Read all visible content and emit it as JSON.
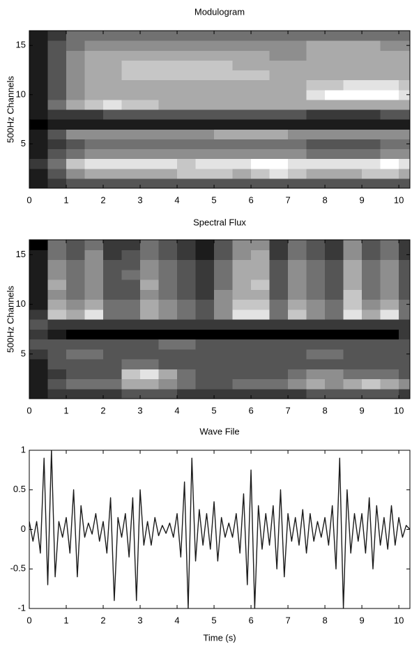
{
  "chart_data": [
    {
      "type": "heatmap",
      "title": "Modulogram",
      "ylabel": "500Hz Channels",
      "xbins": [
        0,
        0.5,
        1,
        1.5,
        2,
        2.5,
        3,
        3.5,
        4,
        4.5,
        5,
        5.5,
        6,
        6.5,
        7,
        7.5,
        8,
        8.5,
        9,
        9.5,
        10,
        10.3
      ],
      "y": [
        1,
        2,
        3,
        4,
        5,
        6,
        7,
        8,
        9,
        10,
        11,
        12,
        13,
        14,
        15,
        16
      ],
      "values": [
        [
          1,
          2,
          3,
          3,
          3,
          3,
          3,
          3,
          3,
          3,
          3,
          3,
          3,
          3,
          3,
          3,
          3,
          3,
          3,
          3,
          3
        ],
        [
          1,
          3,
          5,
          6,
          6,
          6,
          6,
          6,
          7,
          7,
          7,
          6,
          7,
          8,
          7,
          6,
          6,
          6,
          7,
          7,
          6
        ],
        [
          2,
          4,
          7,
          8,
          8,
          8,
          8,
          8,
          7,
          8,
          8,
          8,
          9,
          9,
          8,
          8,
          8,
          8,
          8,
          9,
          8
        ],
        [
          1,
          3,
          4,
          5,
          5,
          5,
          5,
          5,
          5,
          5,
          5,
          5,
          5,
          5,
          5,
          4,
          4,
          4,
          4,
          5,
          5
        ],
        [
          1,
          2,
          3,
          4,
          4,
          4,
          4,
          4,
          4,
          4,
          4,
          4,
          4,
          4,
          4,
          3,
          3,
          3,
          3,
          4,
          4
        ],
        [
          1,
          3,
          5,
          5,
          5,
          5,
          5,
          5,
          5,
          5,
          6,
          6,
          6,
          6,
          5,
          5,
          5,
          5,
          5,
          5,
          5
        ],
        [
          0,
          1,
          1,
          1,
          1,
          1,
          1,
          1,
          1,
          1,
          1,
          1,
          1,
          1,
          1,
          1,
          1,
          1,
          1,
          1,
          1
        ],
        [
          1,
          2,
          2,
          2,
          3,
          3,
          3,
          3,
          3,
          3,
          3,
          3,
          3,
          3,
          3,
          2,
          2,
          2,
          2,
          3,
          3
        ],
        [
          1,
          4,
          6,
          7,
          8,
          7,
          7,
          6,
          6,
          6,
          6,
          6,
          6,
          6,
          6,
          6,
          6,
          6,
          6,
          6,
          6
        ],
        [
          1,
          3,
          5,
          6,
          6,
          6,
          6,
          6,
          6,
          6,
          6,
          6,
          6,
          6,
          6,
          8,
          9,
          9,
          9,
          9,
          8
        ],
        [
          1,
          3,
          5,
          6,
          6,
          6,
          6,
          6,
          6,
          6,
          6,
          6,
          6,
          6,
          6,
          7,
          7,
          8,
          8,
          8,
          7
        ],
        [
          1,
          3,
          5,
          6,
          6,
          7,
          7,
          7,
          7,
          7,
          7,
          7,
          7,
          6,
          6,
          6,
          6,
          6,
          6,
          6,
          6
        ],
        [
          1,
          3,
          5,
          6,
          6,
          7,
          7,
          7,
          7,
          7,
          7,
          6,
          6,
          6,
          6,
          6,
          6,
          6,
          6,
          6,
          6
        ],
        [
          1,
          3,
          5,
          6,
          6,
          6,
          6,
          6,
          6,
          6,
          6,
          6,
          6,
          5,
          5,
          6,
          6,
          6,
          6,
          6,
          6
        ],
        [
          1,
          3,
          4,
          5,
          5,
          5,
          5,
          5,
          5,
          5,
          5,
          5,
          5,
          5,
          5,
          6,
          6,
          6,
          6,
          5,
          5
        ],
        [
          1,
          2,
          4,
          4,
          4,
          4,
          4,
          4,
          4,
          4,
          4,
          4,
          4,
          4,
          4,
          4,
          4,
          4,
          4,
          4,
          4
        ]
      ],
      "zlim": [
        0,
        9
      ],
      "cmap": "gray",
      "xlim": [
        0,
        10.3
      ],
      "xticks": [
        0,
        1,
        2,
        3,
        4,
        5,
        6,
        7,
        8,
        9,
        10
      ],
      "ylim": [
        0.5,
        16.5
      ],
      "yticks": [
        5,
        10,
        15
      ]
    },
    {
      "type": "heatmap",
      "title": "Spectral Flux",
      "ylabel": "500Hz Channels",
      "xbins": [
        0,
        0.5,
        1,
        1.5,
        2,
        2.5,
        3,
        3.5,
        4,
        4.5,
        5,
        5.5,
        6,
        6.5,
        7,
        7.5,
        8,
        8.5,
        9,
        9.5,
        10,
        10.3
      ],
      "y": [
        1,
        2,
        3,
        4,
        5,
        6,
        7,
        8,
        9,
        10,
        11,
        12,
        13,
        14,
        15,
        16
      ],
      "values": [
        [
          1,
          2,
          2,
          2,
          2,
          3,
          3,
          3,
          2,
          2,
          2,
          2,
          2,
          2,
          2,
          3,
          3,
          3,
          3,
          3,
          2
        ],
        [
          1,
          3,
          4,
          4,
          4,
          6,
          6,
          5,
          4,
          3,
          3,
          4,
          4,
          4,
          5,
          6,
          5,
          6,
          7,
          6,
          5
        ],
        [
          1,
          2,
          3,
          3,
          3,
          7,
          8,
          6,
          4,
          3,
          3,
          3,
          3,
          3,
          4,
          5,
          5,
          4,
          4,
          4,
          3
        ],
        [
          1,
          3,
          3,
          3,
          3,
          4,
          4,
          3,
          3,
          3,
          3,
          3,
          3,
          3,
          3,
          3,
          3,
          3,
          3,
          3,
          3
        ],
        [
          2,
          3,
          4,
          4,
          3,
          3,
          3,
          3,
          3,
          3,
          3,
          3,
          3,
          3,
          3,
          4,
          4,
          3,
          3,
          3,
          3
        ],
        [
          3,
          3,
          3,
          3,
          3,
          3,
          3,
          4,
          4,
          3,
          3,
          3,
          3,
          3,
          3,
          3,
          3,
          3,
          3,
          3,
          3
        ],
        [
          2,
          1,
          0,
          0,
          0,
          0,
          0,
          0,
          0,
          0,
          0,
          0,
          0,
          0,
          0,
          0,
          0,
          0,
          0,
          0,
          2
        ],
        [
          3,
          2,
          2,
          2,
          2,
          2,
          2,
          2,
          2,
          2,
          2,
          2,
          2,
          2,
          2,
          2,
          2,
          2,
          2,
          2,
          2
        ],
        [
          2,
          7,
          6,
          8,
          4,
          4,
          6,
          5,
          4,
          3,
          5,
          8,
          8,
          4,
          7,
          5,
          4,
          8,
          6,
          8,
          4
        ],
        [
          1,
          6,
          5,
          6,
          4,
          4,
          6,
          5,
          4,
          3,
          5,
          7,
          7,
          4,
          6,
          5,
          4,
          7,
          5,
          6,
          4
        ],
        [
          1,
          5,
          4,
          5,
          3,
          3,
          5,
          4,
          3,
          2,
          5,
          6,
          6,
          3,
          5,
          4,
          3,
          7,
          4,
          5,
          3
        ],
        [
          1,
          6,
          4,
          5,
          3,
          3,
          6,
          4,
          3,
          2,
          4,
          6,
          7,
          3,
          5,
          4,
          3,
          6,
          4,
          5,
          3
        ],
        [
          1,
          5,
          4,
          5,
          3,
          4,
          5,
          4,
          3,
          2,
          4,
          6,
          6,
          3,
          5,
          4,
          3,
          6,
          4,
          5,
          3
        ],
        [
          1,
          5,
          4,
          5,
          3,
          3,
          5,
          4,
          3,
          2,
          4,
          6,
          6,
          3,
          5,
          4,
          3,
          6,
          4,
          5,
          3
        ],
        [
          1,
          4,
          3,
          5,
          2,
          3,
          4,
          3,
          2,
          1,
          3,
          5,
          6,
          2,
          4,
          3,
          2,
          5,
          3,
          4,
          2
        ],
        [
          0,
          4,
          3,
          4,
          2,
          2,
          4,
          3,
          2,
          1,
          3,
          5,
          5,
          2,
          4,
          3,
          2,
          5,
          3,
          4,
          2
        ]
      ],
      "zlim": [
        0,
        9
      ],
      "cmap": "gray",
      "xlim": [
        0,
        10.3
      ],
      "xticks": [
        0,
        1,
        2,
        3,
        4,
        5,
        6,
        7,
        8,
        9,
        10
      ],
      "ylim": [
        0.5,
        16.5
      ],
      "yticks": [
        5,
        10,
        15
      ]
    },
    {
      "type": "line",
      "title": "Wave File",
      "xlabel": "Time (s)",
      "color": "#1a1a1a",
      "x": [
        0,
        0.1,
        0.2,
        0.3,
        0.4,
        0.5,
        0.6,
        0.7,
        0.8,
        0.9,
        1,
        1.1,
        1.2,
        1.3,
        1.4,
        1.5,
        1.6,
        1.7,
        1.8,
        1.9,
        2,
        2.1,
        2.2,
        2.3,
        2.4,
        2.5,
        2.6,
        2.7,
        2.8,
        2.9,
        3,
        3.1,
        3.2,
        3.3,
        3.4,
        3.5,
        3.6,
        3.7,
        3.8,
        3.9,
        4,
        4.1,
        4.2,
        4.3,
        4.4,
        4.5,
        4.6,
        4.7,
        4.8,
        4.9,
        5,
        5.1,
        5.2,
        5.3,
        5.4,
        5.5,
        5.6,
        5.7,
        5.8,
        5.9,
        6,
        6.1,
        6.2,
        6.3,
        6.4,
        6.5,
        6.6,
        6.7,
        6.8,
        6.9,
        7,
        7.1,
        7.2,
        7.3,
        7.4,
        7.5,
        7.6,
        7.7,
        7.8,
        7.9,
        8,
        8.1,
        8.2,
        8.3,
        8.4,
        8.5,
        8.6,
        8.7,
        8.8,
        8.9,
        9,
        9.1,
        9.2,
        9.3,
        9.4,
        9.5,
        9.6,
        9.7,
        9.8,
        9.9,
        10,
        10.1,
        10.2,
        10.3
      ],
      "values": [
        0.1,
        -0.15,
        0.1,
        -0.3,
        0.9,
        -0.7,
        1,
        -0.6,
        0.1,
        -0.1,
        0.15,
        -0.3,
        0.5,
        -0.6,
        0.3,
        -0.1,
        0.08,
        -0.06,
        0.2,
        -0.15,
        0.1,
        -0.3,
        0.4,
        -0.9,
        0.15,
        -0.1,
        0.2,
        -0.35,
        0.4,
        -0.9,
        0.5,
        -0.2,
        0.1,
        -0.2,
        0.15,
        -0.08,
        0.05,
        -0.05,
        0.08,
        -0.1,
        0.2,
        -0.35,
        0.6,
        -1,
        0.9,
        -0.4,
        0.25,
        -0.2,
        0.2,
        -0.25,
        0.35,
        -0.4,
        0.15,
        -0.1,
        0.08,
        -0.1,
        0.2,
        -0.3,
        0.45,
        -0.7,
        0.75,
        -1,
        0.3,
        -0.25,
        0.2,
        -0.2,
        0.3,
        -0.5,
        0.5,
        -0.6,
        0.2,
        -0.15,
        0.15,
        -0.2,
        0.25,
        -0.3,
        0.2,
        -0.15,
        0.1,
        -0.1,
        0.15,
        -0.2,
        0.3,
        -0.5,
        0.9,
        -1,
        0.5,
        -0.3,
        0.2,
        -0.15,
        0.2,
        -0.3,
        0.4,
        -0.5,
        0.3,
        -0.2,
        0.15,
        -0.25,
        0.3,
        -0.2,
        0.15,
        -0.1,
        0.05,
        0
      ],
      "xlim": [
        0,
        10.3
      ],
      "xticks": [
        0,
        1,
        2,
        3,
        4,
        5,
        6,
        7,
        8,
        9,
        10
      ],
      "ylim": [
        -1,
        1
      ],
      "yticks": [
        -1,
        -0.5,
        0,
        0.5,
        1
      ]
    }
  ]
}
